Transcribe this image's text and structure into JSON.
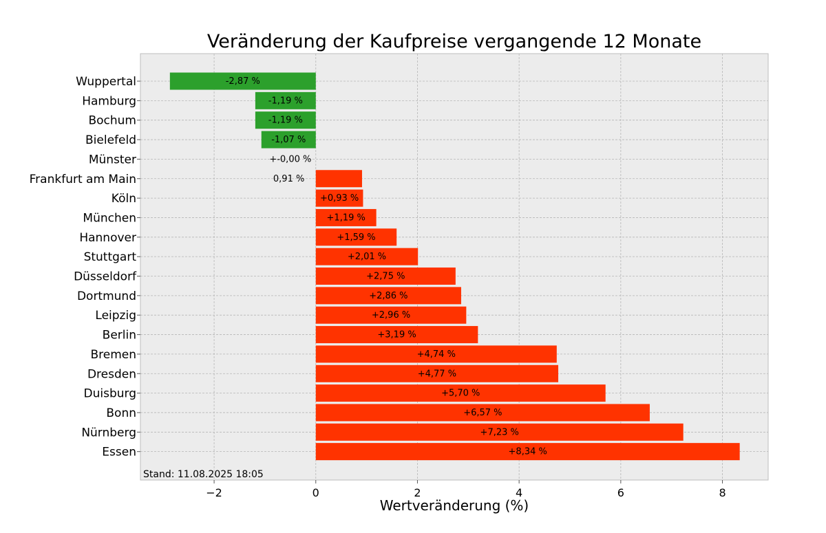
{
  "chart_data": {
    "type": "bar",
    "orientation": "horizontal",
    "title": "Veränderung der Kaufpreise vergangende 12 Monate",
    "xlabel": "Wertveränderung (%)",
    "ylabel": "",
    "xlim": [
      -3.45,
      8.9
    ],
    "xticks": [
      -2,
      0,
      2,
      4,
      6,
      8
    ],
    "xtick_labels": [
      "−2",
      "0",
      "2",
      "4",
      "6",
      "8"
    ],
    "grid": true,
    "note": "Stand: 11.08.2025 18:05",
    "colors": {
      "negative": "#2ca02c",
      "positive": "#ff3300",
      "plot_background": "#ececec",
      "grid": "#b5b5b5"
    },
    "categories": [
      "Wuppertal",
      "Hamburg",
      "Bochum",
      "Bielefeld",
      "Münster",
      "Frankfurt am Main",
      "Köln",
      "München",
      "Hannover",
      "Stuttgart",
      "Düsseldorf",
      "Dortmund",
      "Leipzig",
      "Berlin",
      "Bremen",
      "Dresden",
      "Duisburg",
      "Bonn",
      "Nürnberg",
      "Essen"
    ],
    "values": [
      -2.87,
      -1.19,
      -1.19,
      -1.07,
      0.0,
      0.91,
      0.93,
      1.19,
      1.59,
      2.01,
      2.75,
      2.86,
      2.96,
      3.19,
      4.74,
      4.77,
      5.7,
      6.57,
      7.23,
      8.34
    ],
    "data_labels": [
      "-2,87 %",
      "-1,19 %",
      "-1,19 %",
      "-1,07 %",
      "+-0,00 %",
      "0,91 %",
      "+0,93 %",
      "+1,19 %",
      "+1,59 %",
      "+2,01 %",
      "+2,75 %",
      "+2,86 %",
      "+2,96 %",
      "+3,19 %",
      "+4,74 %",
      "+4,77 %",
      "+5,70 %",
      "+6,57 %",
      "+7,23 %",
      "+8,34 %"
    ]
  }
}
